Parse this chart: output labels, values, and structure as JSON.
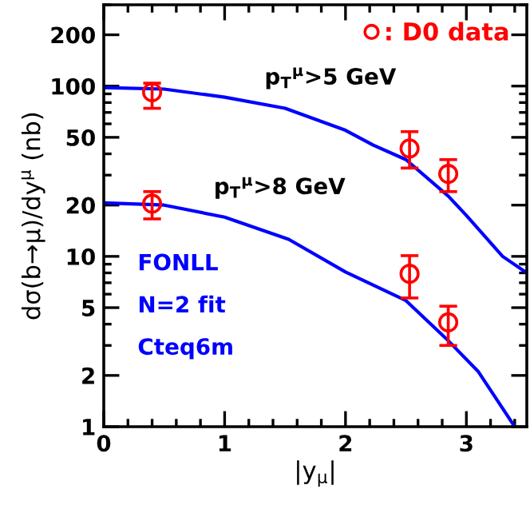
{
  "chart_data": {
    "type": "scatter",
    "xlabel": "|y$_{μ}$|",
    "ylabel": "dσ(b→μ)/dy$^{μ}$ (nb)",
    "xlim": [
      0,
      3.5
    ],
    "xticks": [
      0,
      1,
      2,
      3
    ],
    "ylim": [
      1,
      300
    ],
    "yticks": [
      1,
      2,
      5,
      10,
      20,
      50,
      100,
      200
    ],
    "log": "y",
    "grid": false,
    "legend": "top right",
    "marker": "circle",
    "series": [
      {
        "name": ": D0 data",
        "color": "#ff0000",
        "x": [
          0.4,
          2.53,
          2.85
        ],
        "values": [
          92,
          43,
          30.5
        ],
        "errors": [
          [
            74,
            104
          ],
          [
            33,
            54
          ],
          [
            24,
            37
          ]
        ]
      },
      {
        "color": "#ff0000",
        "x": [
          0.4,
          2.53,
          2.85
        ],
        "values": [
          20.4,
          7.9,
          4.1
        ],
        "errors": [
          [
            16.6,
            24
          ],
          [
            5.7,
            10.1
          ],
          [
            3.0,
            5.1
          ]
        ]
      },
      {
        "type": "line",
        "color": "#0000ff",
        "marker": "none",
        "x": [
          0,
          0.5,
          1,
          1.5,
          2,
          2.23,
          2.5,
          2.85,
          3.0,
          3.3,
          3.5
        ],
        "values": [
          98,
          96,
          86,
          74,
          55,
          45,
          37,
          22.6,
          17.4,
          10,
          8
        ]
      },
      {
        "type": "line",
        "color": "#0000ff",
        "marker": "none",
        "x": [
          0,
          0.5,
          1,
          1.53,
          2,
          2.5,
          2.85,
          3.1,
          3.4
        ],
        "values": [
          20.6,
          20,
          17,
          12.6,
          8.1,
          5.5,
          3.2,
          2.1,
          1.0
        ]
      }
    ],
    "annotations": [
      "p$_{T}$$^{μ}$>5 GeV",
      "p$_{T}$$^{μ}$>8 GeV",
      "FONLL",
      "N=2 fit",
      "Cteq6m"
    ]
  }
}
